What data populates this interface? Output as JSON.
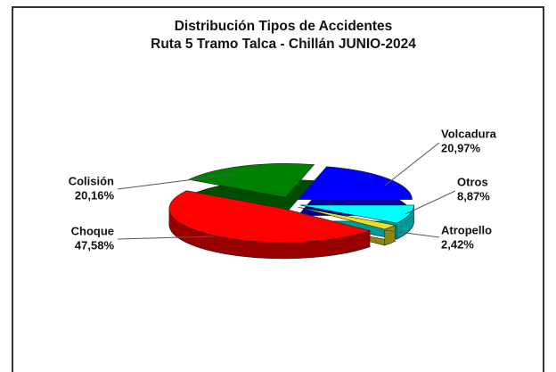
{
  "chart_data": {
    "type": "pie",
    "title": "Distribución Tipos de Accidentes",
    "subtitle": "Ruta 5 Tramo Talca - Chillán JUNIO-2024",
    "categories": [
      "Volcadura",
      "Otros",
      "Atropello",
      "Choque",
      "Colisión"
    ],
    "values": [
      20.97,
      8.87,
      2.42,
      47.58,
      20.16
    ],
    "value_labels": [
      "20,97%",
      "8,87%",
      "2,42%",
      "47,58%",
      "20,16%"
    ],
    "colors": [
      "#0000ff",
      "#00ffff",
      "#e8e020",
      "#ff0000",
      "#008000"
    ]
  }
}
